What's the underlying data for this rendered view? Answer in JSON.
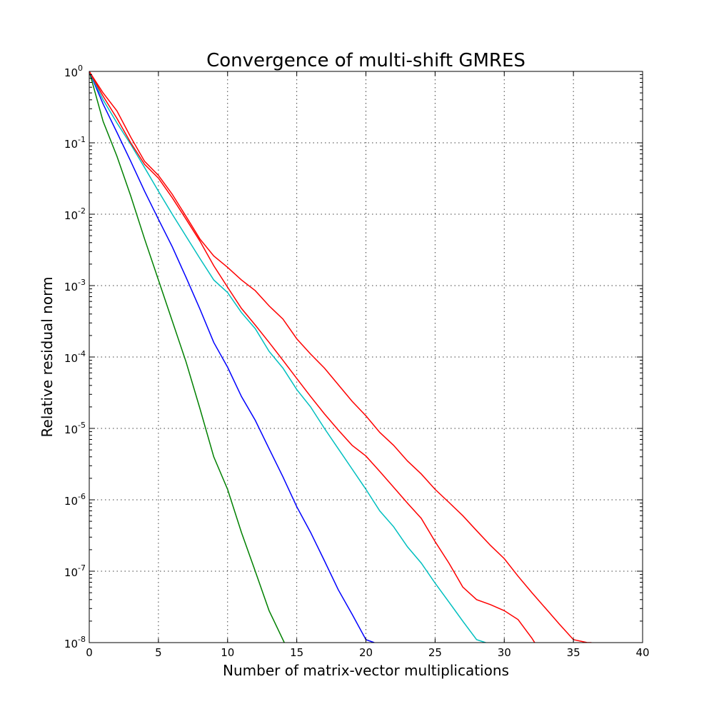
{
  "chart_data": {
    "type": "line",
    "title": "Convergence of multi-shift GMRES",
    "xlabel": "Number of matrix-vector multiplications",
    "ylabel": "Relative residual norm",
    "xlim": [
      0,
      40
    ],
    "ylim": [
      1e-08,
      1
    ],
    "yscale": "log",
    "grid": true,
    "x_ticks": [
      0,
      5,
      10,
      15,
      20,
      25,
      30,
      35,
      40
    ],
    "y_tick_exponents": [
      0,
      -1,
      -2,
      -3,
      -4,
      -5,
      -6,
      -7,
      -8
    ],
    "y_tick_base": "10",
    "series": [
      {
        "color": "#008000",
        "x": [
          0,
          1,
          2,
          3,
          4,
          5,
          6,
          7,
          8,
          9,
          10,
          11,
          12,
          13,
          14.1
        ],
        "y": [
          1,
          0.2,
          0.065,
          0.018,
          0.0045,
          0.0012,
          0.00032,
          8.5e-05,
          1.9e-05,
          4e-06,
          1.4e-06,
          3.5e-07,
          1e-07,
          2.8e-08,
          1e-08
        ]
      },
      {
        "color": "#0000ff",
        "x": [
          0,
          1,
          2,
          3,
          4,
          5,
          6,
          7,
          8,
          9,
          10,
          11,
          12,
          13,
          14,
          15,
          16,
          17,
          18,
          19,
          20,
          20.6
        ],
        "y": [
          1,
          0.35,
          0.14,
          0.055,
          0.021,
          0.0085,
          0.0035,
          0.0013,
          0.00047,
          0.00016,
          7.2e-05,
          2.8e-05,
          1.3e-05,
          5.2e-06,
          2.1e-06,
          8e-07,
          3.5e-07,
          1.4e-07,
          5.5e-08,
          2.5e-08,
          1.1e-08,
          1e-08
        ]
      },
      {
        "color": "#00bfbf",
        "x": [
          0,
          1,
          2,
          3,
          4,
          5,
          6,
          7,
          8,
          9,
          10,
          11,
          12,
          13,
          14,
          15,
          16,
          17,
          18,
          19,
          20,
          21,
          22,
          23,
          24,
          25,
          26,
          27,
          28,
          29
        ],
        "y": [
          1,
          0.4,
          0.19,
          0.095,
          0.045,
          0.021,
          0.01,
          0.0049,
          0.0024,
          0.0012,
          0.0008,
          0.00042,
          0.00025,
          0.00012,
          7e-05,
          3.5e-05,
          2e-05,
          1e-05,
          5.2e-06,
          2.7e-06,
          1.4e-06,
          7e-07,
          4.2e-07,
          2.2e-07,
          1.3e-07,
          6.8e-08,
          3.7e-08,
          2e-08,
          1.1e-08,
          9.5e-09
        ]
      },
      {
        "color": "#ff0000",
        "x": [
          0,
          1,
          2,
          3,
          4,
          5,
          6,
          7,
          8,
          9,
          10,
          11,
          12,
          13,
          14,
          15,
          16,
          17,
          18,
          19,
          20,
          21,
          22,
          23,
          24,
          25,
          26,
          27,
          28,
          29,
          30,
          31,
          32,
          32.2
        ],
        "y": [
          1,
          0.45,
          0.22,
          0.1,
          0.05,
          0.032,
          0.017,
          0.0085,
          0.0042,
          0.0019,
          0.00095,
          0.00048,
          0.00028,
          0.00016,
          9e-05,
          5e-05,
          2.8e-05,
          1.6e-05,
          9.5e-06,
          5.8e-06,
          4.1e-06,
          2.5e-06,
          1.5e-06,
          9e-07,
          5.5e-07,
          2.6e-07,
          1.3e-07,
          6e-08,
          4e-08,
          3.4e-08,
          2.8e-08,
          2.1e-08,
          1.15e-08,
          1e-08
        ]
      },
      {
        "color": "#ff0000",
        "x": [
          0,
          1,
          2,
          3,
          4,
          5,
          6,
          7,
          8,
          9,
          10,
          11,
          12,
          13,
          14,
          15,
          16,
          17,
          18,
          19,
          20,
          21,
          22,
          23,
          24,
          25,
          26,
          27,
          28,
          29,
          30,
          31,
          32,
          33,
          34,
          35,
          36,
          36.3
        ],
        "y": [
          1,
          0.5,
          0.28,
          0.12,
          0.055,
          0.035,
          0.019,
          0.0093,
          0.0045,
          0.0026,
          0.0018,
          0.0012,
          0.00085,
          0.00052,
          0.00034,
          0.00018,
          0.00011,
          7e-05,
          4.1e-05,
          2.4e-05,
          1.5e-05,
          8.8e-06,
          5.8e-06,
          3.5e-06,
          2.3e-06,
          1.4e-06,
          9.2e-07,
          6e-07,
          3.7e-07,
          2.3e-07,
          1.5e-07,
          8.5e-08,
          5e-08,
          3e-08,
          1.8e-08,
          1.1e-08,
          1e-08,
          1e-08
        ]
      }
    ]
  }
}
